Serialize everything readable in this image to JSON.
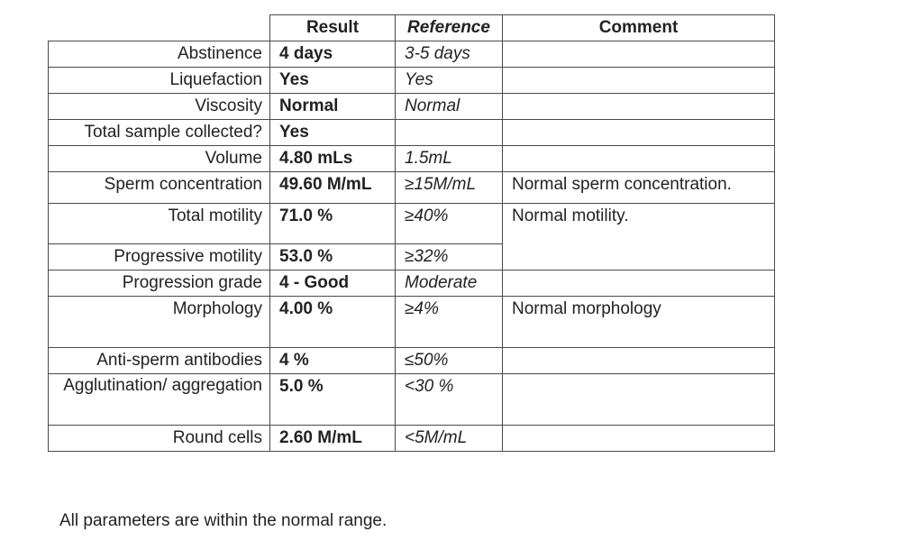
{
  "table": {
    "headers": {
      "result": "Result",
      "reference": "Reference",
      "comment": "Comment"
    },
    "rows": [
      {
        "label": "Abstinence",
        "result": "4 days",
        "reference": "3-5 days",
        "comment": ""
      },
      {
        "label": "Liquefaction",
        "result": "Yes",
        "reference": "Yes",
        "comment": ""
      },
      {
        "label": "Viscosity",
        "result": "Normal",
        "reference": "Normal",
        "comment": ""
      },
      {
        "label": "Total sample collected?",
        "result": "Yes",
        "reference": "",
        "comment": ""
      },
      {
        "label": "Volume",
        "result": "4.80 mLs",
        "reference": "1.5mL",
        "comment": ""
      },
      {
        "label": "Sperm concentration",
        "result": "49.60 M/mL",
        "reference": "≥15M/mL",
        "comment": "Normal sperm concentration."
      },
      {
        "label": "Total motility",
        "result": "71.0 %",
        "reference": "≥40%",
        "comment": "Normal motility."
      },
      {
        "label": "Progressive motility",
        "result": "53.0 %",
        "reference": "≥32%"
      },
      {
        "label": "Progression grade",
        "result": "4 - Good",
        "reference": "Moderate",
        "comment": ""
      },
      {
        "label": "Morphology",
        "result": "4.00 %",
        "reference": "≥4%",
        "comment": "Normal morphology"
      },
      {
        "label": "Anti-sperm antibodies",
        "result": "4 %",
        "reference": "≤50%",
        "comment": ""
      },
      {
        "label": "Agglutination/ aggregation",
        "result": "5.0 %",
        "reference": "<30 %",
        "comment": ""
      },
      {
        "label": "Round cells",
        "result": "2.60 M/mL",
        "reference": "<5M/mL",
        "comment": ""
      }
    ]
  },
  "summary": "All parameters are within the normal range."
}
